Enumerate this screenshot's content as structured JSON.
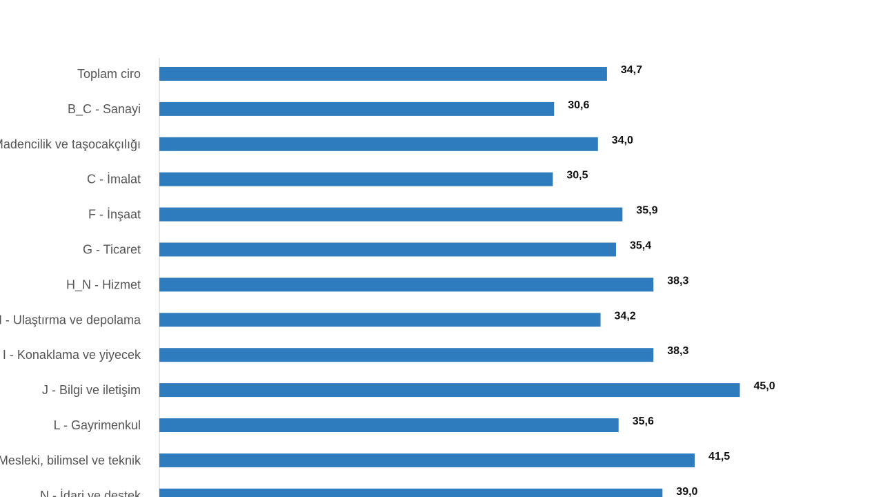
{
  "chart_data": {
    "type": "bar",
    "orientation": "horizontal",
    "title": "",
    "xlabel": "",
    "ylabel": "",
    "categories": [
      "Toplam ciro",
      "B_C - Sanayi",
      "B - Madencilik ve taşocakçılığı",
      "C - İmalat",
      "F - İnşaat",
      "G - Ticaret",
      "H_N - Hizmet",
      "H - Ulaştırma ve depolama",
      "I - Konaklama ve yiyecek",
      "J - Bilgi ve iletişim",
      "L - Gayrimenkul",
      "M - Mesleki, bilimsel ve teknik",
      "N - İdari ve destek"
    ],
    "values": [
      34.7,
      30.6,
      34.0,
      30.5,
      35.9,
      35.4,
      38.3,
      34.2,
      38.3,
      45.0,
      35.6,
      41.5,
      39.0
    ],
    "value_labels": [
      "34,7",
      "30,6",
      "34,0",
      "30,5",
      "35,9",
      "35,4",
      "38,3",
      "34,2",
      "38,3",
      "45,0",
      "35,6",
      "41,5",
      "39,0"
    ],
    "xlim": [
      0,
      50
    ],
    "grid": false,
    "legend": "none",
    "bar_color": "#2e7bbd",
    "axis_color": "#d0d0d0"
  }
}
